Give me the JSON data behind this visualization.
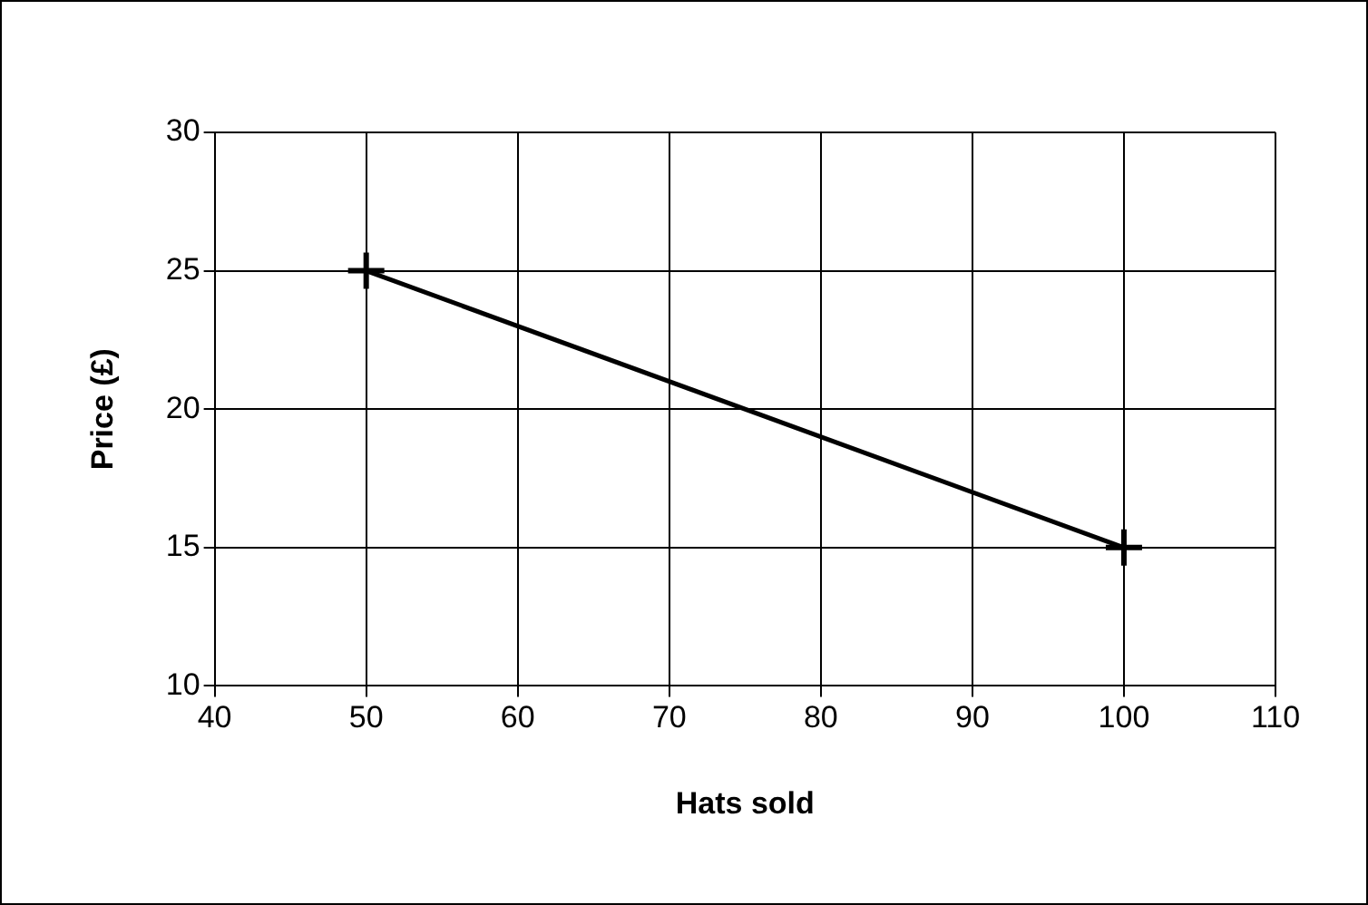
{
  "chart_data": {
    "type": "line",
    "xlabel": "Hats sold",
    "ylabel": "Price (£)",
    "x": [
      50,
      100
    ],
    "series": [
      {
        "color": "#000000",
        "values": [
          25,
          15
        ]
      }
    ],
    "xlim": [
      40,
      110
    ],
    "xticks": [
      40,
      50,
      60,
      70,
      80,
      90,
      100,
      110
    ],
    "ylim": [
      10,
      30
    ],
    "yticks": [
      10,
      15,
      20,
      25,
      30
    ],
    "grid": true,
    "marker": "cross",
    "line_style": "solid",
    "legend": false
  }
}
